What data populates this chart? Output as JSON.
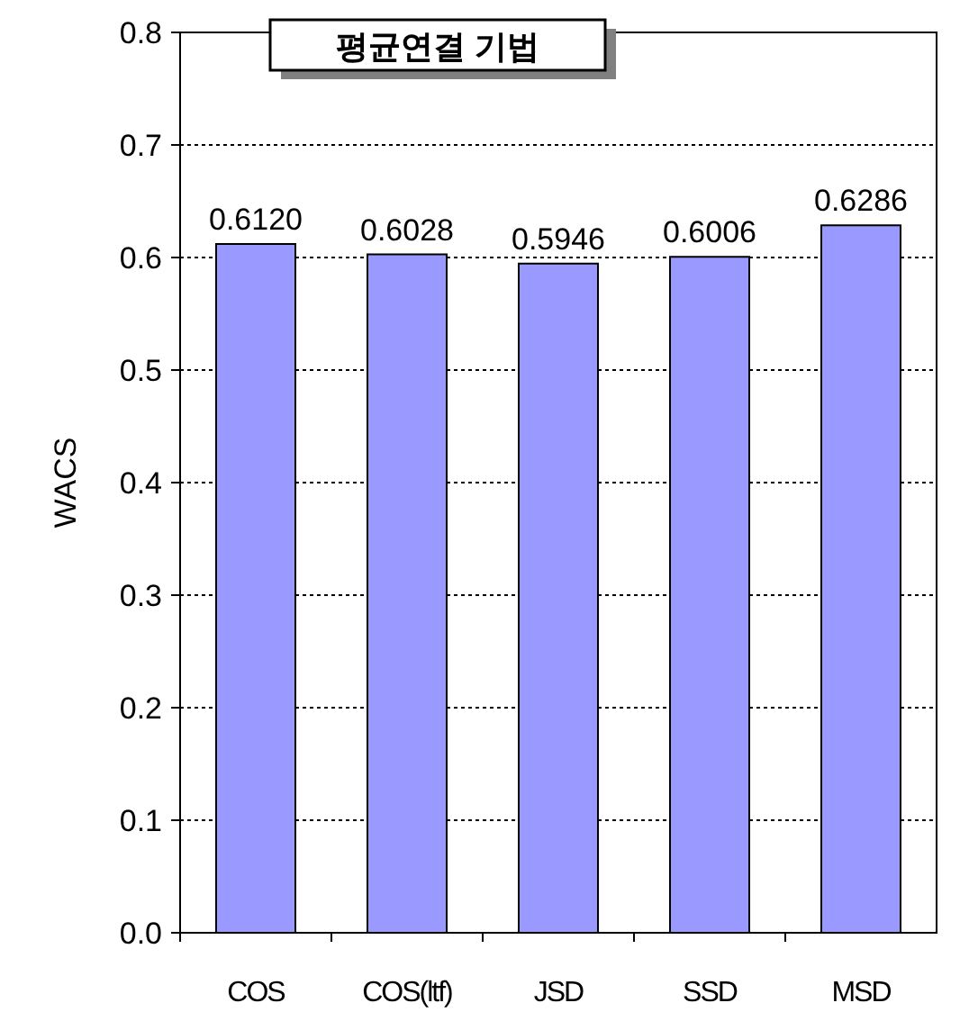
{
  "chart_data": {
    "type": "bar",
    "title": "평균연결 기법",
    "ylabel": "WACS",
    "categories": [
      "COS",
      "COS(ltf)",
      "JSD",
      "SSD",
      "MSD"
    ],
    "values": [
      0.612,
      0.6028,
      0.5946,
      0.6006,
      0.6286
    ],
    "value_labels": [
      "0.6120",
      "0.6028",
      "0.5946",
      "0.6006",
      "0.6286"
    ],
    "color": "#9999ff",
    "ylim": [
      0,
      0.8
    ],
    "yticks": [
      {
        "value": 0,
        "label": "0.0"
      },
      0.1,
      0.2,
      0.3,
      0.4,
      0.5,
      0.6,
      0.7,
      0.8
    ],
    "grid": "y"
  }
}
